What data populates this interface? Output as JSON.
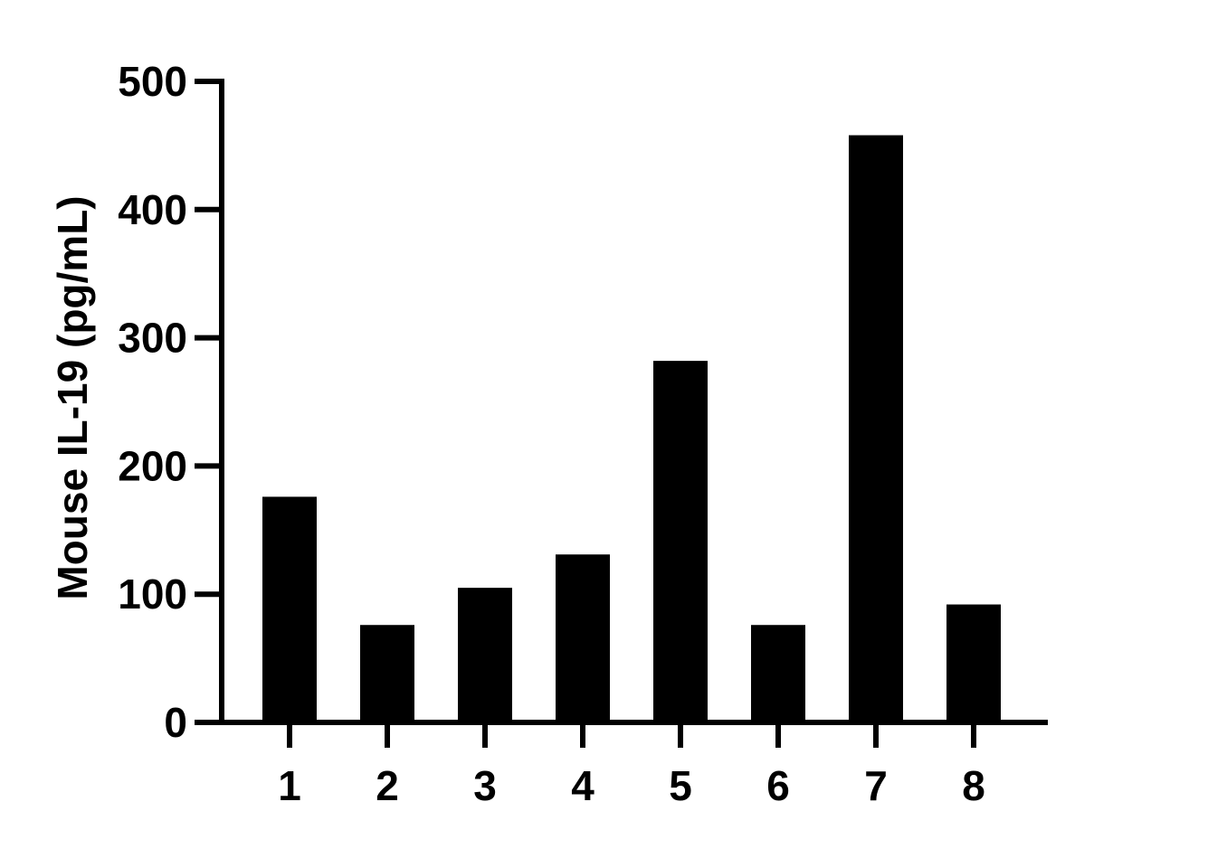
{
  "chart_data": {
    "type": "bar",
    "title": "",
    "xlabel": "",
    "ylabel": "Mouse IL-19 (pg/mL)",
    "categories": [
      "1",
      "2",
      "3",
      "4",
      "5",
      "6",
      "7",
      "8"
    ],
    "values": [
      176,
      76,
      105,
      131,
      282,
      76,
      458,
      92
    ],
    "ylim": [
      0,
      500
    ],
    "yticks": [
      "0",
      "100",
      "200",
      "300",
      "400",
      "500"
    ],
    "grid": false,
    "bar_color": "#000000"
  }
}
